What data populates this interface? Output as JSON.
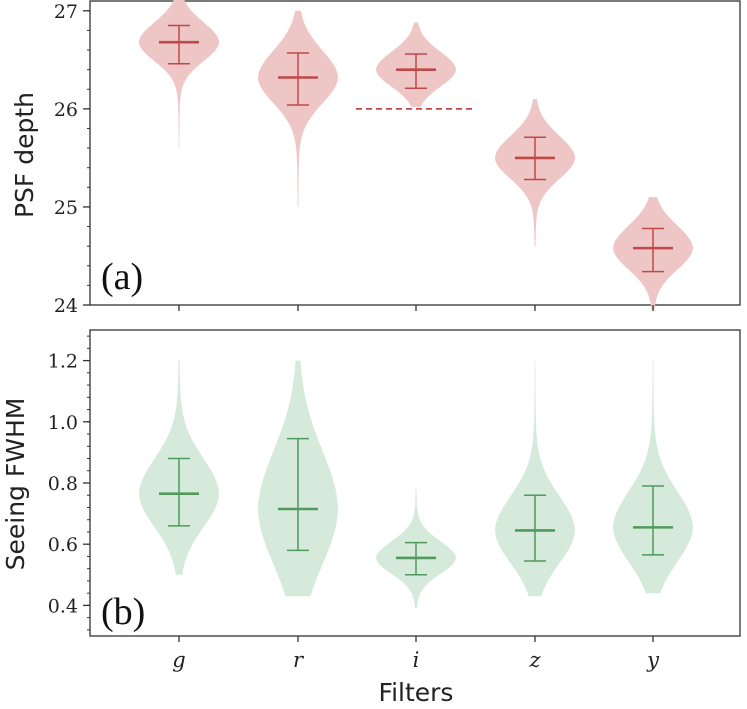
{
  "chart_data": [
    {
      "type": "violin",
      "panel_label": "(a)",
      "ylabel": "PSF depth",
      "ylim": [
        24,
        27.1
      ],
      "yticks": [
        "24",
        "25",
        "26",
        "27"
      ],
      "color": "#c14848",
      "fill": "#eec6c6",
      "categories": [
        "g",
        "r",
        "i",
        "z",
        "y"
      ],
      "series": [
        {
          "name": "g",
          "min": 25.6,
          "max": 27.12,
          "median": 26.68,
          "low": 26.46,
          "high": 26.85
        },
        {
          "name": "r",
          "min": 25.0,
          "max": 27.0,
          "median": 26.32,
          "low": 26.04,
          "high": 26.57
        },
        {
          "name": "i",
          "min": 26.02,
          "max": 26.88,
          "median": 26.4,
          "low": 26.21,
          "high": 26.56
        },
        {
          "name": "z",
          "min": 24.6,
          "max": 26.1,
          "median": 25.5,
          "low": 25.28,
          "high": 25.71
        },
        {
          "name": "y",
          "min": 23.95,
          "max": 25.1,
          "median": 24.58,
          "low": 24.34,
          "high": 24.78
        }
      ],
      "reference_line": {
        "category": "i",
        "value": 26.0,
        "style": "dashed"
      }
    },
    {
      "type": "violin",
      "panel_label": "(b)",
      "ylabel": "Seeing FWHM",
      "xlabel": "Filters",
      "ylim": [
        0.3,
        1.3
      ],
      "yticks": [
        "0.4",
        "0.6",
        "0.8",
        "1.0",
        "1.2"
      ],
      "color": "#4f9a5c",
      "fill": "#d6eadb",
      "categories": [
        "g",
        "r",
        "i",
        "z",
        "y"
      ],
      "series": [
        {
          "name": "g",
          "min": 0.5,
          "max": 1.2,
          "median": 0.765,
          "low": 0.66,
          "high": 0.88
        },
        {
          "name": "r",
          "min": 0.43,
          "max": 1.2,
          "median": 0.715,
          "low": 0.58,
          "high": 0.945
        },
        {
          "name": "i",
          "min": 0.39,
          "max": 0.78,
          "median": 0.555,
          "low": 0.5,
          "high": 0.605
        },
        {
          "name": "z",
          "min": 0.43,
          "max": 1.2,
          "median": 0.645,
          "low": 0.545,
          "high": 0.76
        },
        {
          "name": "y",
          "min": 0.44,
          "max": 1.2,
          "median": 0.655,
          "low": 0.565,
          "high": 0.79
        }
      ]
    }
  ]
}
